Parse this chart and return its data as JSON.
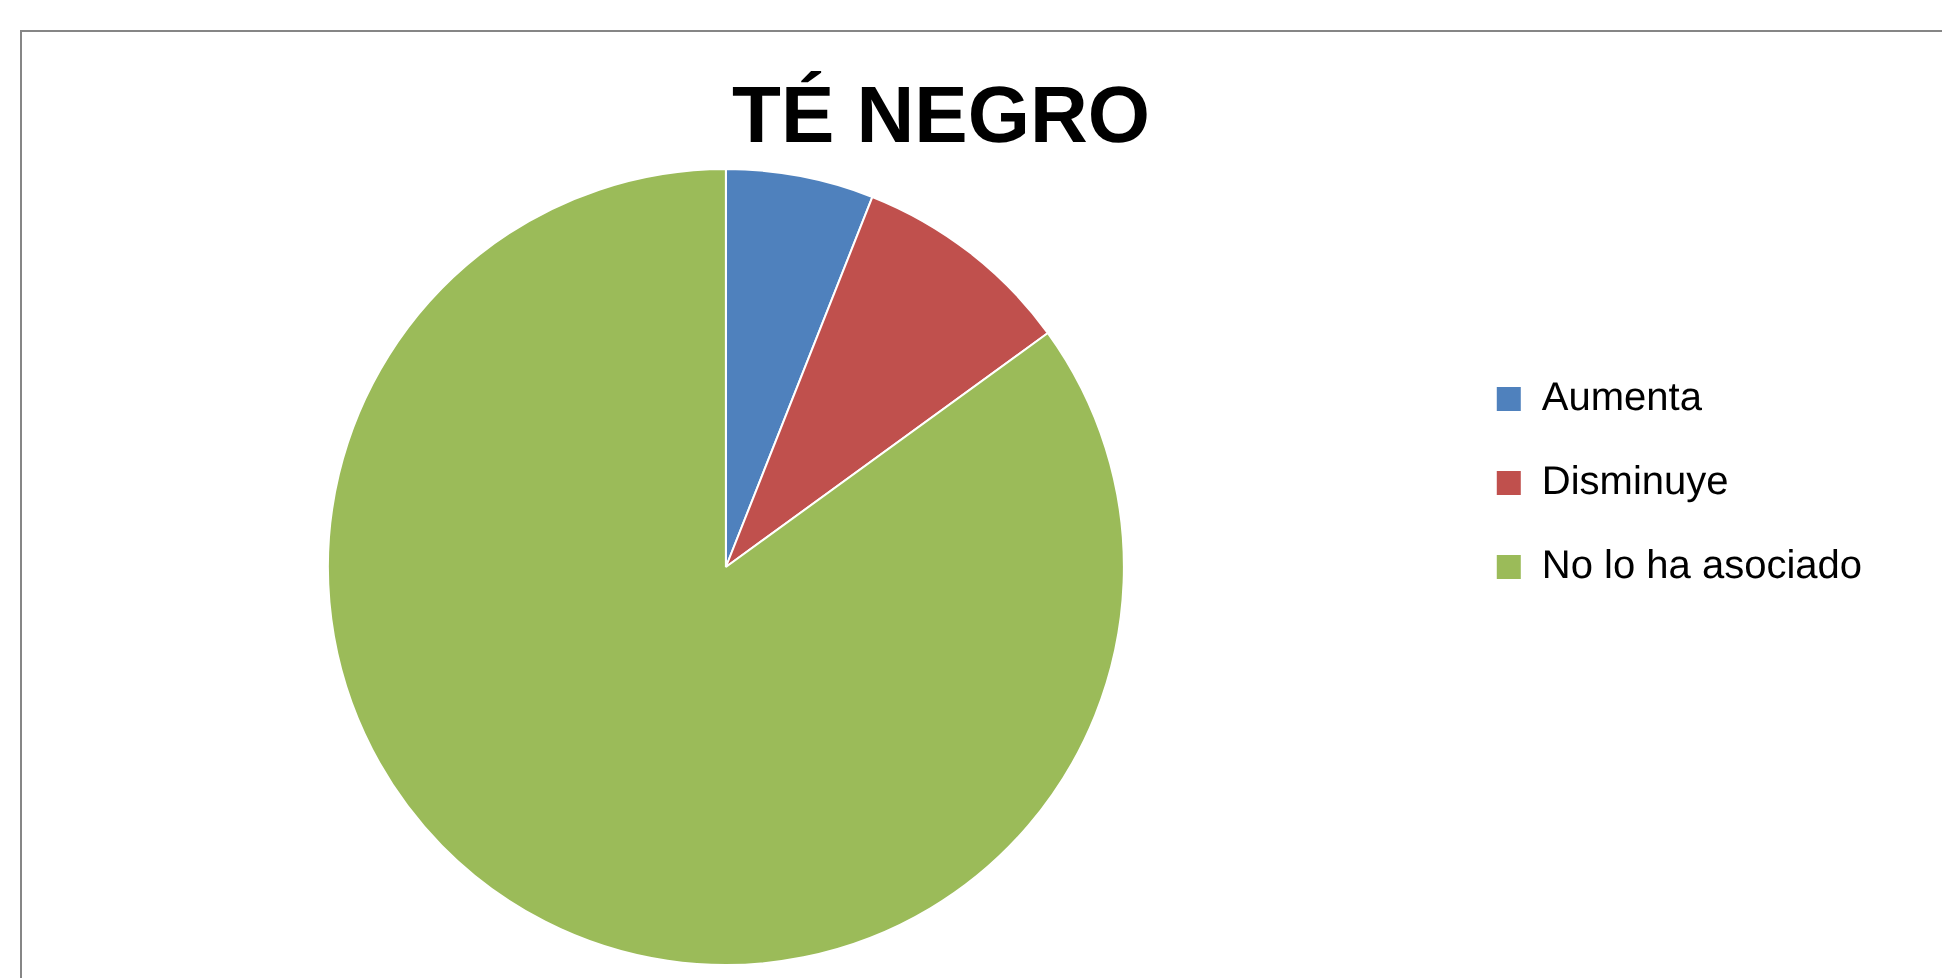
{
  "chart_data": {
    "type": "pie",
    "title": "TÉ NEGRO",
    "categories": [
      "Aumenta",
      "Disminuye",
      "No lo ha asociado"
    ],
    "values": [
      6,
      9,
      85
    ],
    "colors": [
      "#4f81bd",
      "#c0504d",
      "#9bbb59"
    ],
    "legend": "right"
  }
}
